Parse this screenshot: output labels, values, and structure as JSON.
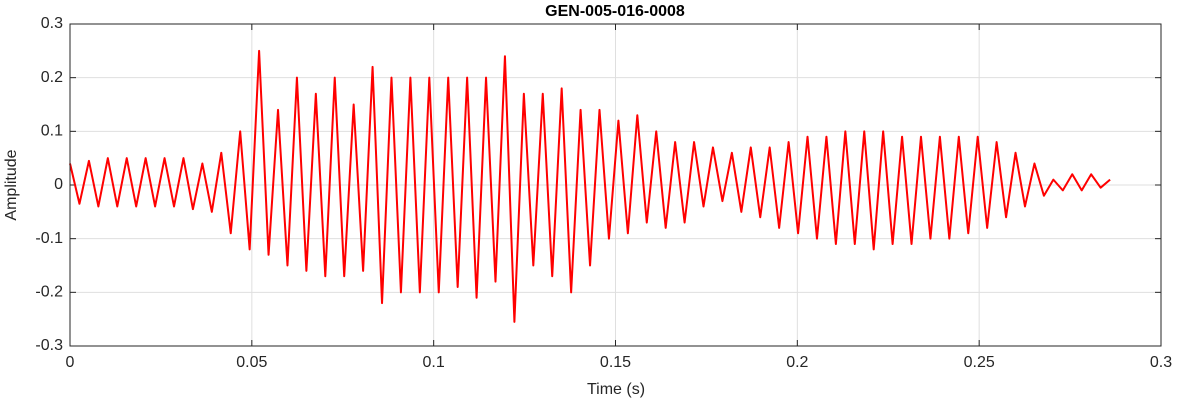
{
  "chart_data": {
    "type": "line",
    "title": "GEN-005-016-0008",
    "x_label": "Time (s)",
    "y_label": "Amplitude",
    "x": [
      0,
      0.0026,
      0.0052,
      0.0078,
      0.0104,
      0.013,
      0.0156,
      0.0182,
      0.0208,
      0.0234,
      0.026,
      0.0286,
      0.0312,
      0.0338,
      0.0364,
      0.039,
      0.0416,
      0.0442,
      0.0468,
      0.0494,
      0.052,
      0.0546,
      0.0572,
      0.0598,
      0.0624,
      0.065,
      0.0676,
      0.0702,
      0.0728,
      0.0754,
      0.078,
      0.0806,
      0.0832,
      0.0858,
      0.0884,
      0.091,
      0.0936,
      0.0962,
      0.0988,
      0.1014,
      0.104,
      0.1066,
      0.1092,
      0.1118,
      0.1144,
      0.117,
      0.1196,
      0.1222,
      0.1248,
      0.1274,
      0.13,
      0.1326,
      0.1352,
      0.1378,
      0.1404,
      0.143,
      0.1456,
      0.1482,
      0.1508,
      0.1534,
      0.156,
      0.1586,
      0.1612,
      0.1638,
      0.1664,
      0.169,
      0.1716,
      0.1742,
      0.1768,
      0.1794,
      0.182,
      0.1846,
      0.1872,
      0.1898,
      0.1924,
      0.195,
      0.1976,
      0.2002,
      0.2028,
      0.2054,
      0.208,
      0.2106,
      0.2132,
      0.2158,
      0.2184,
      0.221,
      0.2236,
      0.2262,
      0.2288,
      0.2314,
      0.234,
      0.2366,
      0.2392,
      0.2418,
      0.2444,
      0.247,
      0.2496,
      0.2522,
      0.2548,
      0.2574,
      0.26,
      0.2626,
      0.2652,
      0.2678,
      0.2704,
      0.273,
      0.2756,
      0.2782,
      0.2808,
      0.2834,
      0.286
    ],
    "series": [
      {
        "color": "#ff0000",
        "values": [
          0.04,
          -0.035,
          0.045,
          -0.04,
          0.05,
          -0.04,
          0.05,
          -0.04,
          0.05,
          -0.04,
          0.05,
          -0.04,
          0.05,
          -0.045,
          0.04,
          -0.05,
          0.06,
          -0.09,
          0.1,
          -0.12,
          0.25,
          -0.13,
          0.14,
          -0.15,
          0.2,
          -0.16,
          0.17,
          -0.17,
          0.2,
          -0.17,
          0.15,
          -0.16,
          0.22,
          -0.22,
          0.2,
          -0.2,
          0.2,
          -0.2,
          0.2,
          -0.2,
          0.2,
          -0.19,
          0.2,
          -0.21,
          0.2,
          -0.18,
          0.24,
          -0.255,
          0.17,
          -0.15,
          0.17,
          -0.17,
          0.18,
          -0.2,
          0.14,
          -0.15,
          0.14,
          -0.1,
          0.12,
          -0.09,
          0.13,
          -0.07,
          0.1,
          -0.08,
          0.08,
          -0.07,
          0.08,
          -0.04,
          0.07,
          -0.03,
          0.06,
          -0.05,
          0.07,
          -0.06,
          0.07,
          -0.08,
          0.08,
          -0.09,
          0.09,
          -0.1,
          0.09,
          -0.11,
          0.1,
          -0.11,
          0.1,
          -0.12,
          0.1,
          -0.11,
          0.09,
          -0.11,
          0.09,
          -0.1,
          0.09,
          -0.1,
          0.09,
          -0.09,
          0.09,
          -0.08,
          0.08,
          -0.06,
          0.06,
          -0.04,
          0.04,
          -0.02,
          0.01,
          -0.01,
          0.02,
          -0.01,
          0.02,
          -0.005,
          0.01
        ]
      }
    ],
    "xlim": [
      0,
      0.3
    ],
    "xticks": [
      0,
      0.05,
      0.1,
      0.15,
      0.2,
      0.25,
      0.3
    ],
    "ylim": [
      -0.3,
      0.3
    ],
    "yticks": [
      -0.3,
      -0.2,
      -0.1,
      0,
      0.1,
      0.2,
      0.3
    ],
    "grid": true
  }
}
